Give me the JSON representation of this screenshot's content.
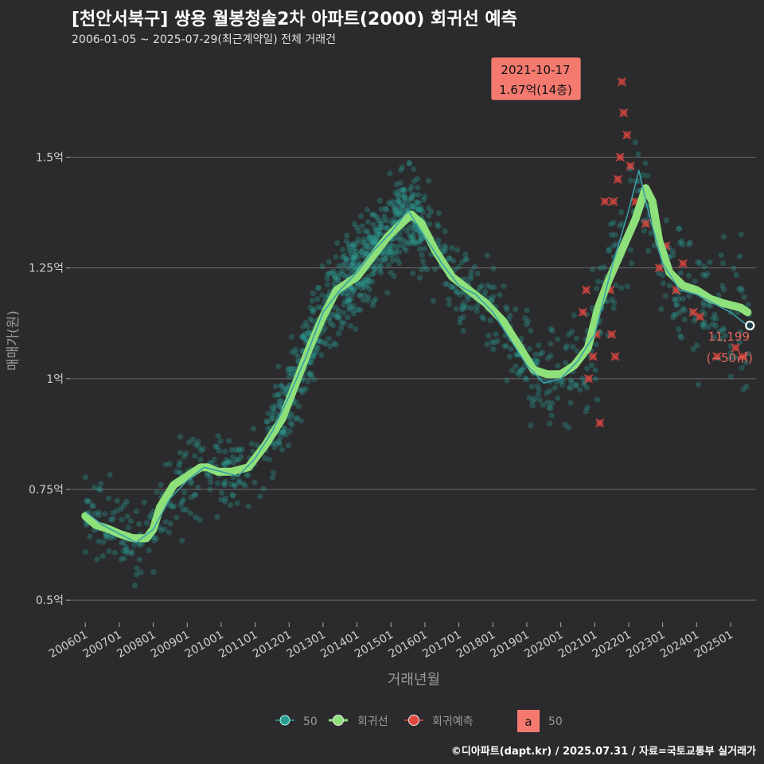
{
  "header": {
    "title": "[천안서북구] 쌍용 월봉청솔2차 아파트(2000) 회귀선 예측",
    "subtitle": "2006-01-05 ~ 2025-07-29(최근계약일) 전체 거래건"
  },
  "footer": {
    "caption": "©디아파트(dapt.kr) / 2025.07.31 / 자료=국토교통부 실거래가"
  },
  "colors": {
    "background": "#2b2b2d",
    "scatter": "#2a9d95",
    "regression": "#8ee07a",
    "forecast": "#e0473f",
    "label_box": "#f47a6f",
    "moving_avg": "#3aa0a8"
  },
  "chart_data": {
    "type": "scatter",
    "xlabel": "거래년월",
    "ylabel": "매매가(원)",
    "x_ticks": [
      "200601",
      "200701",
      "200801",
      "200901",
      "201001",
      "201101",
      "201201",
      "201301",
      "201401",
      "201501",
      "201601",
      "201701",
      "201801",
      "201901",
      "202001",
      "202101",
      "202201",
      "202301",
      "202401",
      "202501"
    ],
    "y_ticks": [
      {
        "value": 0.5,
        "label": "0.5억"
      },
      {
        "value": 0.75,
        "label": "0.75억"
      },
      {
        "value": 1.0,
        "label": "1억"
      },
      {
        "value": 1.25,
        "label": "1.25억"
      },
      {
        "value": 1.5,
        "label": "1.5억"
      }
    ],
    "ylim": [
      0.45,
      1.72
    ],
    "xlim": [
      2005.55,
      2025.75
    ],
    "grid": true,
    "regression_line": [
      [
        2006.0,
        0.69
      ],
      [
        2006.3,
        0.67
      ],
      [
        2006.7,
        0.66
      ],
      [
        2007.0,
        0.65
      ],
      [
        2007.4,
        0.64
      ],
      [
        2007.8,
        0.64
      ],
      [
        2008.0,
        0.66
      ],
      [
        2008.2,
        0.71
      ],
      [
        2008.6,
        0.76
      ],
      [
        2009.0,
        0.78
      ],
      [
        2009.4,
        0.8
      ],
      [
        2009.6,
        0.8
      ],
      [
        2009.9,
        0.79
      ],
      [
        2010.3,
        0.79
      ],
      [
        2010.8,
        0.8
      ],
      [
        2011.3,
        0.85
      ],
      [
        2011.8,
        0.91
      ],
      [
        2012.2,
        0.99
      ],
      [
        2012.6,
        1.07
      ],
      [
        2013.0,
        1.14
      ],
      [
        2013.4,
        1.2
      ],
      [
        2014.0,
        1.23
      ],
      [
        2014.5,
        1.28
      ],
      [
        2014.9,
        1.32
      ],
      [
        2015.3,
        1.35
      ],
      [
        2015.6,
        1.37
      ],
      [
        2015.9,
        1.35
      ],
      [
        2016.3,
        1.29
      ],
      [
        2016.8,
        1.23
      ],
      [
        2017.3,
        1.2
      ],
      [
        2017.8,
        1.17
      ],
      [
        2018.3,
        1.13
      ],
      [
        2018.8,
        1.07
      ],
      [
        2019.2,
        1.02
      ],
      [
        2019.6,
        1.01
      ],
      [
        2020.0,
        1.01
      ],
      [
        2020.4,
        1.03
      ],
      [
        2020.8,
        1.07
      ],
      [
        2021.1,
        1.16
      ],
      [
        2021.4,
        1.22
      ],
      [
        2021.8,
        1.29
      ],
      [
        2022.2,
        1.36
      ],
      [
        2022.5,
        1.43
      ],
      [
        2022.7,
        1.4
      ],
      [
        2022.9,
        1.31
      ],
      [
        2023.2,
        1.24
      ],
      [
        2023.6,
        1.21
      ],
      [
        2024.0,
        1.2
      ],
      [
        2024.4,
        1.18
      ],
      [
        2024.8,
        1.17
      ],
      [
        2025.3,
        1.16
      ],
      [
        2025.5,
        1.15
      ]
    ],
    "moving_average_line": [
      [
        2006.0,
        0.7
      ],
      [
        2006.5,
        0.67
      ],
      [
        2007.0,
        0.65
      ],
      [
        2007.5,
        0.63
      ],
      [
        2008.0,
        0.66
      ],
      [
        2008.5,
        0.73
      ],
      [
        2009.0,
        0.77
      ],
      [
        2009.5,
        0.8
      ],
      [
        2010.0,
        0.79
      ],
      [
        2010.5,
        0.78
      ],
      [
        2011.0,
        0.82
      ],
      [
        2011.5,
        0.88
      ],
      [
        2012.0,
        0.96
      ],
      [
        2012.5,
        1.05
      ],
      [
        2013.0,
        1.15
      ],
      [
        2013.5,
        1.2
      ],
      [
        2014.0,
        1.24
      ],
      [
        2014.5,
        1.29
      ],
      [
        2015.0,
        1.33
      ],
      [
        2015.5,
        1.38
      ],
      [
        2016.0,
        1.32
      ],
      [
        2016.5,
        1.26
      ],
      [
        2017.0,
        1.21
      ],
      [
        2017.5,
        1.19
      ],
      [
        2018.0,
        1.15
      ],
      [
        2018.5,
        1.09
      ],
      [
        2019.0,
        1.03
      ],
      [
        2019.5,
        0.99
      ],
      [
        2020.0,
        1.0
      ],
      [
        2020.5,
        1.04
      ],
      [
        2021.0,
        1.1
      ],
      [
        2021.5,
        1.25
      ],
      [
        2022.0,
        1.38
      ],
      [
        2022.3,
        1.47
      ],
      [
        2022.6,
        1.37
      ],
      [
        2023.0,
        1.26
      ],
      [
        2023.5,
        1.2
      ],
      [
        2024.0,
        1.19
      ],
      [
        2024.5,
        1.17
      ],
      [
        2025.0,
        1.15
      ],
      [
        2025.5,
        1.12
      ]
    ],
    "latest_point": {
      "x": 2025.57,
      "y": 1.12
    },
    "forecast_points": [
      [
        2020.65,
        1.15
      ],
      [
        2020.75,
        1.2
      ],
      [
        2020.82,
        1.0
      ],
      [
        2020.95,
        1.05
      ],
      [
        2021.05,
        1.1
      ],
      [
        2021.15,
        0.9
      ],
      [
        2021.3,
        1.4
      ],
      [
        2021.45,
        1.2
      ],
      [
        2021.5,
        1.1
      ],
      [
        2021.55,
        1.4
      ],
      [
        2021.6,
        1.05
      ],
      [
        2021.68,
        1.45
      ],
      [
        2021.75,
        1.5
      ],
      [
        2021.8,
        1.67
      ],
      [
        2021.85,
        1.6
      ],
      [
        2021.95,
        1.55
      ],
      [
        2022.05,
        1.48
      ],
      [
        2022.2,
        1.4
      ],
      [
        2022.5,
        1.35
      ],
      [
        2022.9,
        1.25
      ],
      [
        2023.1,
        1.3
      ],
      [
        2023.4,
        1.2
      ],
      [
        2023.6,
        1.26
      ],
      [
        2023.9,
        1.15
      ],
      [
        2024.1,
        1.14
      ],
      [
        2024.6,
        1.05
      ],
      [
        2025.15,
        1.07
      ],
      [
        2025.35,
        1.05
      ]
    ],
    "annotation_peak": {
      "date": "2021-10-17",
      "price": "1.67억(14층)",
      "x": 2021.8,
      "y": 1.67
    },
    "annotation_latest": {
      "value": "11,199",
      "area": "(~50㎡)"
    },
    "legend": [
      {
        "label": "50",
        "kind": "moving_avg"
      },
      {
        "label": "회귀선",
        "kind": "regression"
      },
      {
        "label": "회귀예측",
        "kind": "forecast"
      },
      {
        "label": "50",
        "kind": "text_box",
        "glyph": "a"
      }
    ]
  }
}
